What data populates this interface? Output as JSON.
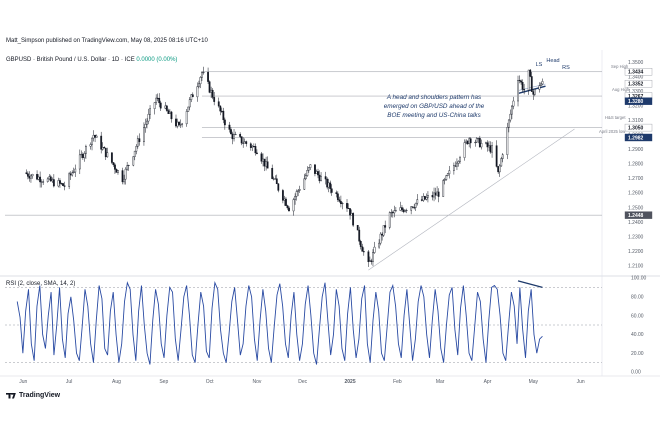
{
  "header": {
    "publisher_line": "Matt_Simpson published on TradingView.com, May 08, 2025 08:16 UTC+10",
    "symbol_line": "GBPUSD · British Pound / U.S. Dollar · 1D · ICE",
    "ohlc_change": "0.0000 (0.00%)"
  },
  "brand": {
    "name": "TradingView"
  },
  "rsi_label": "RSI (2, close, SMA, 14, 2)",
  "annotation": {
    "lines": [
      "A head and shoulders pattern has",
      "emerged on GBP/USD ahead of the",
      "BOE meeting and US-China talks"
    ]
  },
  "pattern_labels": {
    "left_shoulder": "LS",
    "head": "Head",
    "right_shoulder": "RS"
  },
  "levels": {
    "sep_high": "Sep High",
    "aug_high": "Aug High",
    "hs_target": "H&S target",
    "april_low": "April 2025 low"
  },
  "colors": {
    "candle": "#131722",
    "rsi_line": "#2a4ba3",
    "neckline": "#1e3a6b",
    "price_tag_dark": "#1e3a6b",
    "level_line": "#9598a1"
  },
  "chart_data": [
    {
      "type": "candlestick",
      "title": "GBPUSD · British Pound / U.S. Dollar · 1D · ICE",
      "x_ticks": [
        "Jun",
        "Jul",
        "Aug",
        "Sep",
        "Oct",
        "Nov",
        "Dec",
        "2025",
        "Feb",
        "Mar",
        "Apr",
        "May",
        "Jun"
      ],
      "y_ticks": [
        1.35,
        1.34,
        1.33,
        1.32,
        1.31,
        1.3,
        1.29,
        1.28,
        1.27,
        1.26,
        1.25,
        1.24,
        1.23,
        1.22,
        1.21
      ],
      "ylim": [
        1.205,
        1.357
      ],
      "price_labels": [
        "1.3434",
        "1.3352",
        "1.3267",
        "1.3280",
        "1.3050",
        "1.2982",
        "1.2448"
      ],
      "key_points": [
        {
          "date": "2024-06-01",
          "close": 1.274
        },
        {
          "date": "2024-06-28",
          "close": 1.265
        },
        {
          "date": "2024-07-17",
          "close": 1.3
        },
        {
          "date": "2024-08-05",
          "close": 1.27
        },
        {
          "date": "2024-08-27",
          "close": 1.325
        },
        {
          "date": "2024-09-11",
          "close": 1.305
        },
        {
          "date": "2024-09-26",
          "close": 1.343
        },
        {
          "date": "2024-10-15",
          "close": 1.3
        },
        {
          "date": "2024-11-01",
          "close": 1.29
        },
        {
          "date": "2024-11-22",
          "close": 1.25
        },
        {
          "date": "2024-12-06",
          "close": 1.278
        },
        {
          "date": "2024-12-31",
          "close": 1.25
        },
        {
          "date": "2025-01-13",
          "close": 1.21
        },
        {
          "date": "2025-01-27",
          "close": 1.245
        },
        {
          "date": "2025-02-28",
          "close": 1.26
        },
        {
          "date": "2025-03-20",
          "close": 1.298
        },
        {
          "date": "2025-04-04",
          "close": 1.29
        },
        {
          "date": "2025-04-08",
          "close": 1.273
        },
        {
          "date": "2025-04-21",
          "close": 1.34
        },
        {
          "date": "2025-04-25",
          "close": 1.331
        },
        {
          "date": "2025-04-28",
          "close": 1.342
        },
        {
          "date": "2025-05-01",
          "close": 1.328
        },
        {
          "date": "2025-05-05",
          "close": 1.335
        },
        {
          "date": "2025-05-07",
          "close": 1.3352
        }
      ],
      "horizontal_levels": [
        {
          "name": "Sep High",
          "value": 1.3434
        },
        {
          "name": "Aug High",
          "value": 1.3267
        },
        {
          "name": "H&S target",
          "value": 1.305
        },
        {
          "name": "April 2025 low",
          "value": 1.2982
        },
        {
          "name": "",
          "value": 1.2448
        }
      ]
    },
    {
      "type": "line",
      "title": "RSI (2, close, SMA, 14, 2)",
      "y_ticks": [
        100,
        80,
        60,
        40,
        20,
        0
      ],
      "ylim": [
        0,
        100
      ],
      "guide_lines": [
        90,
        50,
        10
      ],
      "series": [
        {
          "values": [
            75,
            58,
            20,
            65,
            88,
            30,
            12,
            70,
            92,
            40,
            25,
            60,
            85,
            18,
            50,
            90,
            35,
            15,
            62,
            80,
            55,
            20,
            12,
            48,
            88,
            70,
            30,
            10,
            55,
            92,
            78,
            25,
            18,
            65,
            85,
            40,
            10,
            30,
            75,
            95,
            88,
            40,
            12,
            65,
            92,
            50,
            20,
            8,
            55,
            88,
            72,
            30,
            15,
            60,
            90,
            85,
            35,
            12,
            45,
            80,
            92,
            60,
            18,
            10,
            50,
            85,
            70,
            22,
            15,
            68,
            95,
            88,
            45,
            20,
            10,
            40,
            75,
            90,
            55,
            18,
            30,
            70,
            92,
            80,
            35,
            12,
            55,
            88,
            65,
            25,
            10,
            48,
            82,
            94,
            70,
            30,
            15,
            60,
            85,
            40,
            12,
            30,
            72,
            92,
            60,
            20,
            8,
            45,
            80,
            95,
            55,
            18,
            40,
            88,
            70,
            25,
            12,
            62,
            90,
            45,
            15,
            35,
            78,
            92,
            30,
            10,
            55,
            85,
            65,
            20,
            12,
            48,
            85,
            92,
            70,
            30,
            15,
            60,
            88,
            50,
            12,
            35,
            75,
            92,
            80,
            40,
            15,
            55,
            88,
            65,
            25,
            10,
            50,
            82,
            90,
            45,
            18,
            68,
            92,
            60,
            20,
            12,
            48,
            85,
            75,
            35,
            10,
            55,
            90,
            92,
            88,
            60,
            20,
            12,
            50,
            85,
            70,
            30,
            90,
            45,
            15,
            65,
            88,
            40,
            20,
            35,
            38
          ]
        }
      ]
    }
  ]
}
